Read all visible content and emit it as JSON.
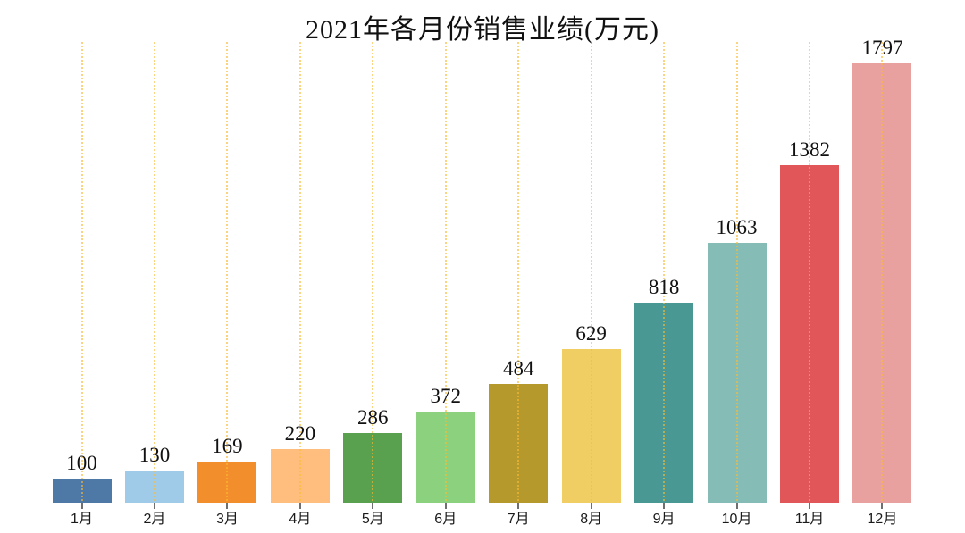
{
  "chart_data": {
    "type": "bar",
    "title": "2021年各月份销售业绩(万元)",
    "categories": [
      "1月",
      "2月",
      "3月",
      "4月",
      "5月",
      "6月",
      "7月",
      "8月",
      "9月",
      "10月",
      "11月",
      "12月"
    ],
    "values": [
      100,
      130,
      169,
      220,
      286,
      372,
      484,
      629,
      818,
      1063,
      1382,
      1797
    ],
    "value_labels": [
      "100",
      "130",
      "169",
      "220",
      "286",
      "372",
      "484",
      "629",
      "818",
      "1063",
      "1382",
      "1797"
    ],
    "xlabel": "",
    "ylabel": "",
    "ylim": [
      0,
      1850
    ],
    "legend": "none",
    "grid": "vertical dotted gridline at each category center, drawn over bars",
    "gridline_color": "#FABA32",
    "background_color": "#FFFFFF",
    "text_color": "#111111",
    "tick_color": "#6F6F6F",
    "bar_colors": [
      "#4E79A7",
      "#A0CBE8",
      "#F28E2B",
      "#FFBE7D",
      "#59A14F",
      "#8CD17D",
      "#B6992D",
      "#F1CE63",
      "#499894",
      "#86BCB6",
      "#E15759",
      "#E9A1A0"
    ]
  }
}
